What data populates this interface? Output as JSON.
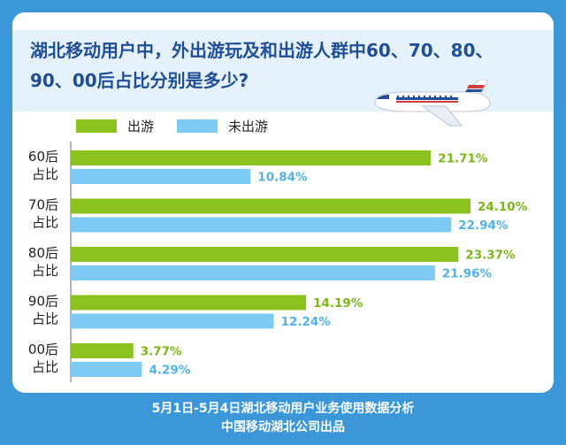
{
  "title": "湖北移动用户中，外出游玩及和出游人群中60、70、80、90、00后占比分别是多少?",
  "legend": [
    {
      "label": "出游",
      "color": "#8cc21f"
    },
    {
      "label": "未出游",
      "color": "#7dcbf4"
    }
  ],
  "footer": {
    "line1": "5月1日-5月4日湖北移动用户业务使用数据分析",
    "line2": "中国移动湖北公司出品"
  },
  "chart_data": {
    "type": "bar",
    "orientation": "horizontal",
    "categories": [
      "60后占比",
      "70后占比",
      "80后占比",
      "90后占比",
      "00后占比"
    ],
    "series": [
      {
        "name": "出游",
        "values": [
          21.71,
          24.1,
          23.37,
          14.19,
          3.77
        ],
        "labels": [
          "21.71%",
          "24.10%",
          "23.37%",
          "14.19%",
          "3.77%"
        ],
        "color": "#8cc21f",
        "label_color": "#7cb518"
      },
      {
        "name": "未出游",
        "values": [
          10.84,
          22.94,
          21.96,
          12.24,
          4.29
        ],
        "labels": [
          "10.84%",
          "22.94%",
          "21.96%",
          "12.24%",
          "4.29%"
        ],
        "color": "#7dcbf4",
        "label_color": "#4fb3e8"
      }
    ]
  }
}
